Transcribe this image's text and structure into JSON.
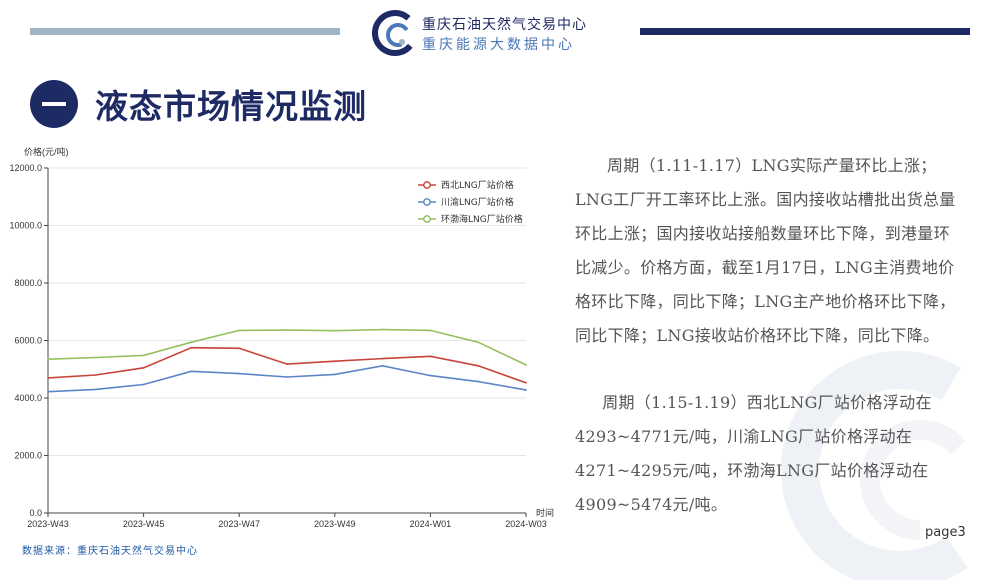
{
  "header": {
    "org_name": "重庆石油天然气交易中心",
    "org_sub": "重庆能源大数据中心"
  },
  "section": {
    "title": "液态市场情况监测"
  },
  "colors": {
    "navy": "#1e2a63",
    "series_northwest": "#c8433a",
    "series_chuanyu": "#5b85c6",
    "series_huanbohai": "#93c05c"
  },
  "chart_data": {
    "type": "line",
    "ylabel": "价格(元/吨)",
    "xlabel": "时间",
    "ylim": [
      0,
      12000
    ],
    "yticks": [
      "0.0",
      "2000.0",
      "4000.0",
      "6000.0",
      "8000.0",
      "10000.0",
      "12000.0"
    ],
    "x": [
      "2023-W43",
      "2023-W44",
      "2023-W45",
      "2023-W46",
      "2023-W47",
      "2023-W48",
      "2023-W49",
      "2023-W50",
      "2024-W01",
      "2024-W02",
      "2024-W03"
    ],
    "x_tick_labels": [
      "2023-W43",
      "2023-W45",
      "2023-W47",
      "2023-W49",
      "2024-W01",
      "2024-W03"
    ],
    "legend_position": "top-right",
    "grid": true,
    "series": [
      {
        "name": "西北LNG厂站价格",
        "color": "#c8433a",
        "values": [
          4700,
          4800,
          5050,
          5750,
          5730,
          5180,
          5280,
          5370,
          5450,
          5120,
          4530
        ]
      },
      {
        "name": "川渝LNG厂站价格",
        "color": "#5b85c6",
        "values": [
          4220,
          4300,
          4470,
          4930,
          4850,
          4730,
          4820,
          5120,
          4780,
          4570,
          4280
        ]
      },
      {
        "name": "环渤海LNG厂站价格",
        "color": "#93c05c",
        "values": [
          5350,
          5410,
          5480,
          5940,
          6350,
          6360,
          6340,
          6380,
          6350,
          5940,
          5150
        ]
      }
    ]
  },
  "text": {
    "para1": "周期（1.11-1.17）LNG实际产量环比上涨；LNG工厂开工率环比上涨。国内接收站槽批出货总量环比上涨；国内接收站接船数量环比下降，到港量环比减少。价格方面，截至1月17日，LNG主消费地价格环比下降，同比下降；LNG主产地价格环比下降，同比下降；LNG接收站价格环比下降，同比下降。",
    "para2": "周期（1.15-1.19）西北LNG厂站价格浮动在4293~4771元/吨，川渝LNG厂站价格浮动在4271~4295元/吨，环渤海LNG厂站价格浮动在4909~5474元/吨。"
  },
  "footer": {
    "source": "数据来源：重庆石油天然气交易中心",
    "page": "page3"
  }
}
